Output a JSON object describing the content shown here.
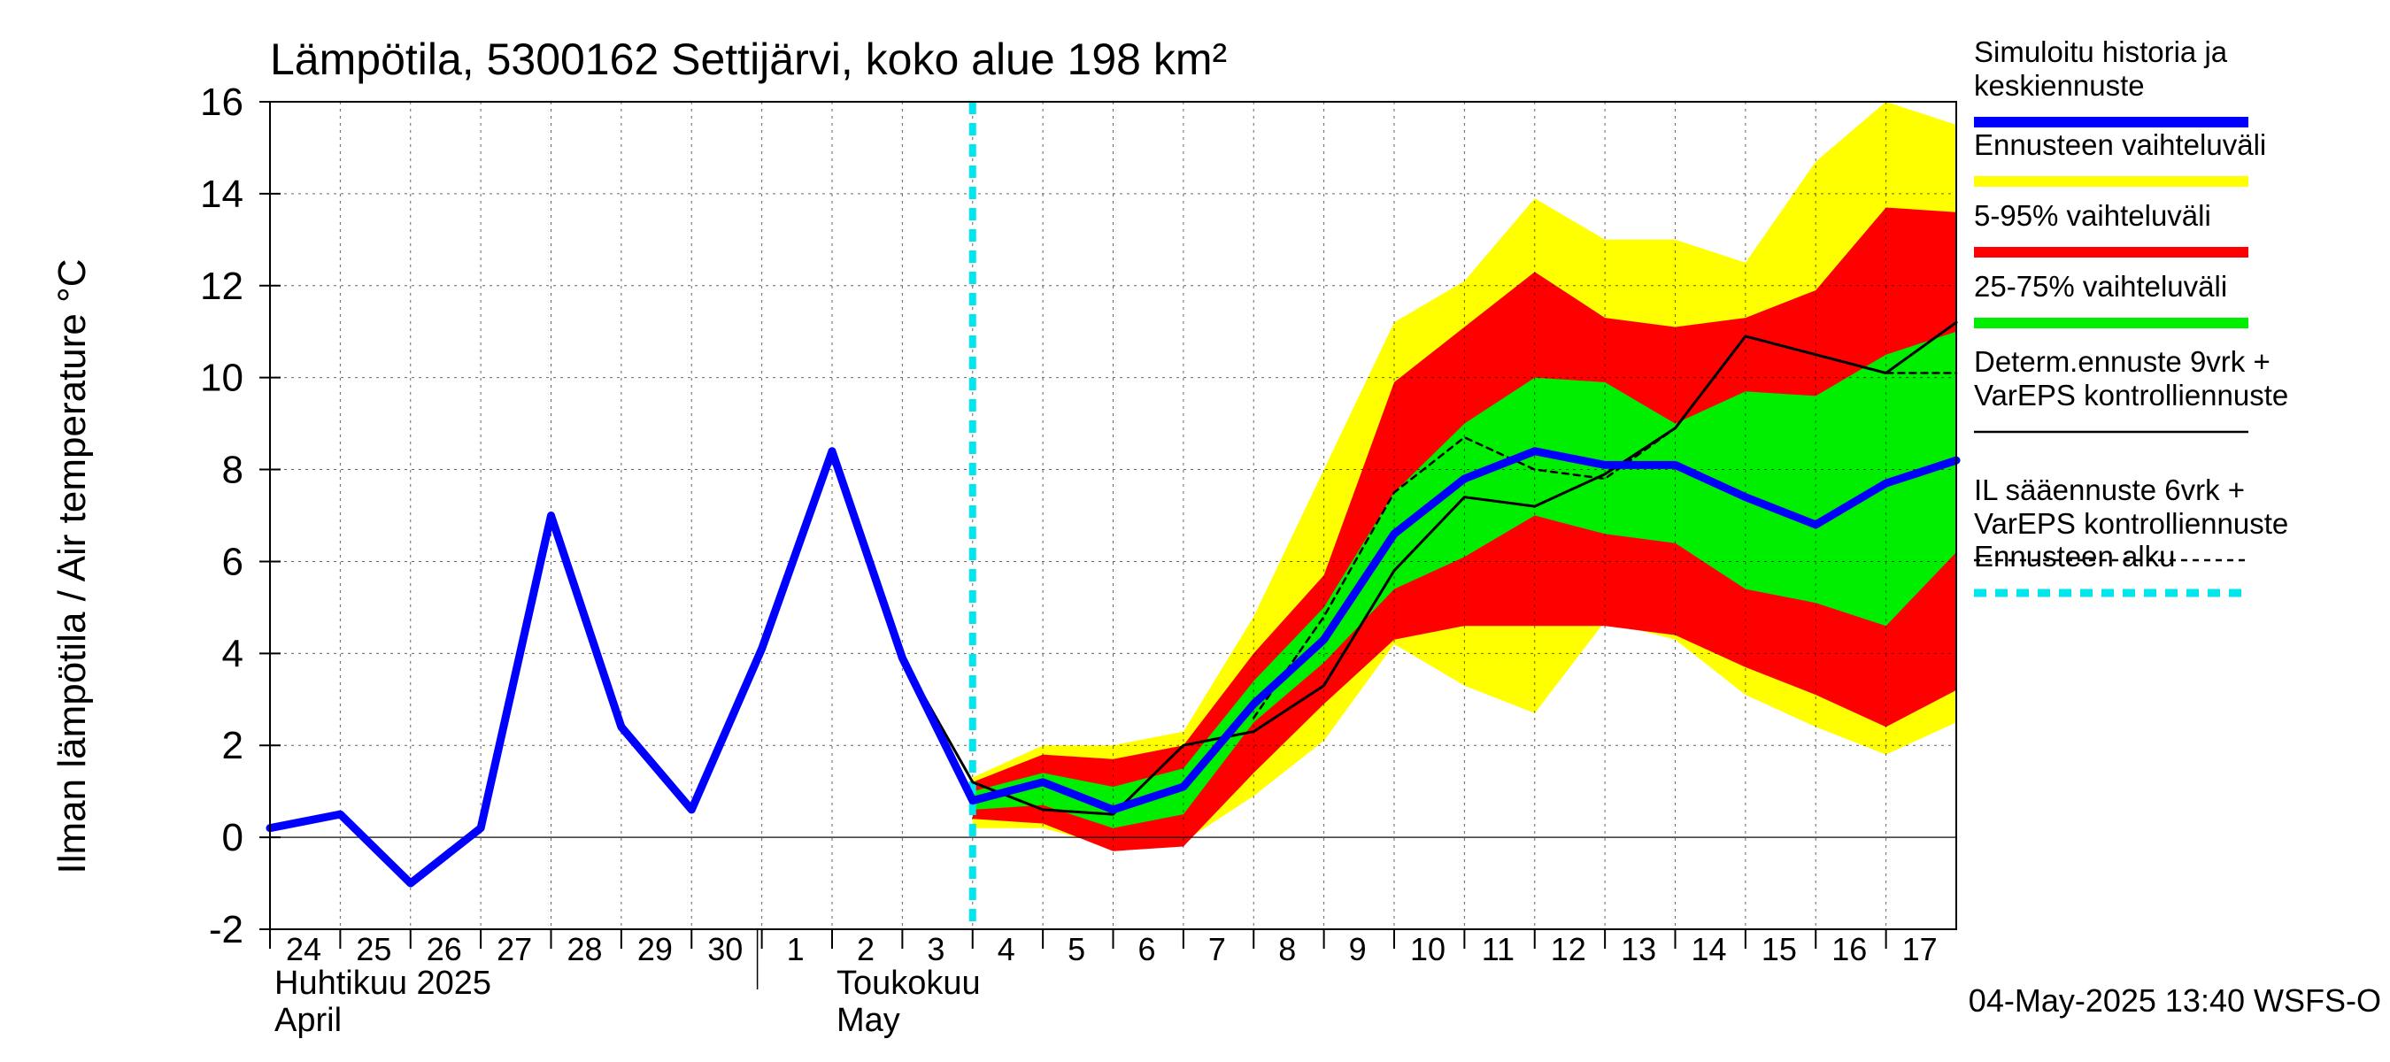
{
  "chart_data": {
    "type": "area",
    "title": "Lämpötila, 5300162 Settijärvi, koko alue 198 km²",
    "ylabel": "Ilman lämpötila / Air temperature   °C",
    "ylim": [
      -2,
      16
    ],
    "yticks": [
      -2,
      0,
      2,
      4,
      6,
      8,
      10,
      12,
      14,
      16
    ],
    "xlim": [
      0,
      24
    ],
    "day_labels": [
      {
        "x": 0,
        "label": "24"
      },
      {
        "x": 1,
        "label": "25"
      },
      {
        "x": 2,
        "label": "26"
      },
      {
        "x": 3,
        "label": "27"
      },
      {
        "x": 4,
        "label": "28"
      },
      {
        "x": 5,
        "label": "29"
      },
      {
        "x": 6,
        "label": "30"
      },
      {
        "x": 7,
        "label": "1"
      },
      {
        "x": 8,
        "label": "2"
      },
      {
        "x": 9,
        "label": "3"
      },
      {
        "x": 10,
        "label": "4"
      },
      {
        "x": 11,
        "label": "5"
      },
      {
        "x": 12,
        "label": "6"
      },
      {
        "x": 13,
        "label": "7"
      },
      {
        "x": 14,
        "label": "8"
      },
      {
        "x": 15,
        "label": "9"
      },
      {
        "x": 16,
        "label": "10"
      },
      {
        "x": 17,
        "label": "11"
      },
      {
        "x": 18,
        "label": "12"
      },
      {
        "x": 19,
        "label": "13"
      },
      {
        "x": 20,
        "label": "14"
      },
      {
        "x": 21,
        "label": "15"
      },
      {
        "x": 22,
        "label": "16"
      },
      {
        "x": 23,
        "label": "17"
      }
    ],
    "month_labels": [
      {
        "x": 0,
        "line1": "Huhtikuu  2025",
        "line2": "April"
      },
      {
        "x": 8,
        "line1": "Toukokuu",
        "line2": "May"
      }
    ],
    "forecast_start_x": 10,
    "band_x": [
      10,
      11,
      12,
      13,
      14,
      15,
      16,
      17,
      18,
      19,
      20,
      21,
      22,
      23,
      24
    ],
    "bands": [
      {
        "name": "Ennusteen vaihteluväli",
        "color": "#ffff00",
        "upper": [
          1.3,
          2.0,
          2.0,
          2.3,
          4.8,
          8.0,
          11.2,
          12.1,
          13.9,
          13.0,
          13.0,
          12.5,
          14.7,
          16.0,
          15.5
        ],
        "lower": [
          0.2,
          0.2,
          -0.2,
          -0.1,
          0.9,
          2.1,
          4.2,
          3.3,
          2.7,
          4.7,
          4.3,
          3.1,
          2.4,
          1.8,
          2.5
        ]
      },
      {
        "name": "5-95% vaihteluväli",
        "color": "#ff0000",
        "upper": [
          1.2,
          1.8,
          1.7,
          2.0,
          4.0,
          5.7,
          9.9,
          11.1,
          12.3,
          11.3,
          11.1,
          11.3,
          11.9,
          13.7,
          13.6
        ],
        "lower": [
          0.4,
          0.3,
          -0.3,
          -0.2,
          1.4,
          2.9,
          4.3,
          4.6,
          4.6,
          4.6,
          4.4,
          3.7,
          3.1,
          2.4,
          3.2
        ]
      },
      {
        "name": "25-75% vaihteluväli",
        "color": "#00ee00",
        "upper": [
          1.0,
          1.4,
          1.1,
          1.5,
          3.4,
          5.0,
          7.5,
          9.0,
          10.0,
          9.9,
          9.0,
          9.7,
          9.6,
          10.5,
          11.0
        ],
        "lower": [
          0.6,
          0.7,
          0.2,
          0.5,
          2.5,
          3.8,
          5.4,
          6.1,
          7.0,
          6.6,
          6.4,
          5.4,
          5.1,
          4.6,
          6.2
        ]
      }
    ],
    "series": [
      {
        "name": "Simuloitu historia ja keskiennuste",
        "color": "#0000ff",
        "style": "thick",
        "x": [
          0,
          1,
          2,
          3,
          4,
          5,
          6,
          7,
          8,
          9,
          10,
          11,
          12,
          13,
          14,
          15,
          16,
          17,
          18,
          19,
          20,
          21,
          22,
          23,
          24
        ],
        "values": [
          0.2,
          0.5,
          -1.0,
          0.2,
          7.0,
          2.4,
          0.6,
          4.1,
          8.4,
          3.9,
          0.8,
          1.2,
          0.6,
          1.1,
          2.9,
          4.3,
          6.6,
          7.8,
          8.4,
          8.1,
          8.1,
          7.4,
          6.8,
          7.7,
          8.2
        ]
      },
      {
        "name": "Determ.ennuste 9vrk + VarEPS kontrolliennuste",
        "color": "#000000",
        "style": "solid",
        "x": [
          8,
          9,
          10,
          11,
          12,
          13,
          14,
          15,
          16,
          17,
          18,
          19,
          20,
          21,
          22,
          23,
          24
        ],
        "values": [
          8.3,
          3.9,
          1.2,
          0.6,
          0.5,
          2.0,
          2.3,
          3.3,
          5.8,
          7.4,
          7.2,
          7.9,
          8.9,
          10.9,
          10.5,
          10.1,
          11.2
        ]
      },
      {
        "name": "IL sääennuste 6vrk + VarEPS kontrolliennuste",
        "color": "#000000",
        "style": "dashed",
        "x": [
          14,
          15,
          16,
          17,
          18,
          19,
          20,
          21,
          22,
          23,
          24
        ],
        "values": [
          2.6,
          4.8,
          7.5,
          8.7,
          8.0,
          7.8,
          8.9,
          10.9,
          10.5,
          10.1,
          10.1
        ]
      }
    ],
    "legend": [
      {
        "lines": [
          "Simuloitu historia ja",
          "keskiennuste"
        ],
        "color": "#0000ff",
        "kind": "thick"
      },
      {
        "lines": [
          "Ennusteen vaihteluväli"
        ],
        "color": "#ffff00",
        "kind": "thick"
      },
      {
        "lines": [
          "5-95% vaihteluväli"
        ],
        "color": "#ff0000",
        "kind": "thick"
      },
      {
        "lines": [
          "25-75% vaihteluväli"
        ],
        "color": "#00ee00",
        "kind": "thick"
      },
      {
        "lines": [
          "Determ.ennuste 9vrk +",
          "VarEPS kontrolliennuste"
        ],
        "color": "#000000",
        "kind": "solid"
      },
      {
        "lines": [
          "IL sääennuste 6vrk  +",
          "  VarEPS kontrolliennuste"
        ],
        "color": "#000000",
        "kind": "dashed"
      },
      {
        "lines": [
          "Ennusteen alku"
        ],
        "color": "#00e5ee",
        "kind": "cyan-dash"
      }
    ],
    "footer": "04-May-2025 13:40 WSFS-O"
  }
}
